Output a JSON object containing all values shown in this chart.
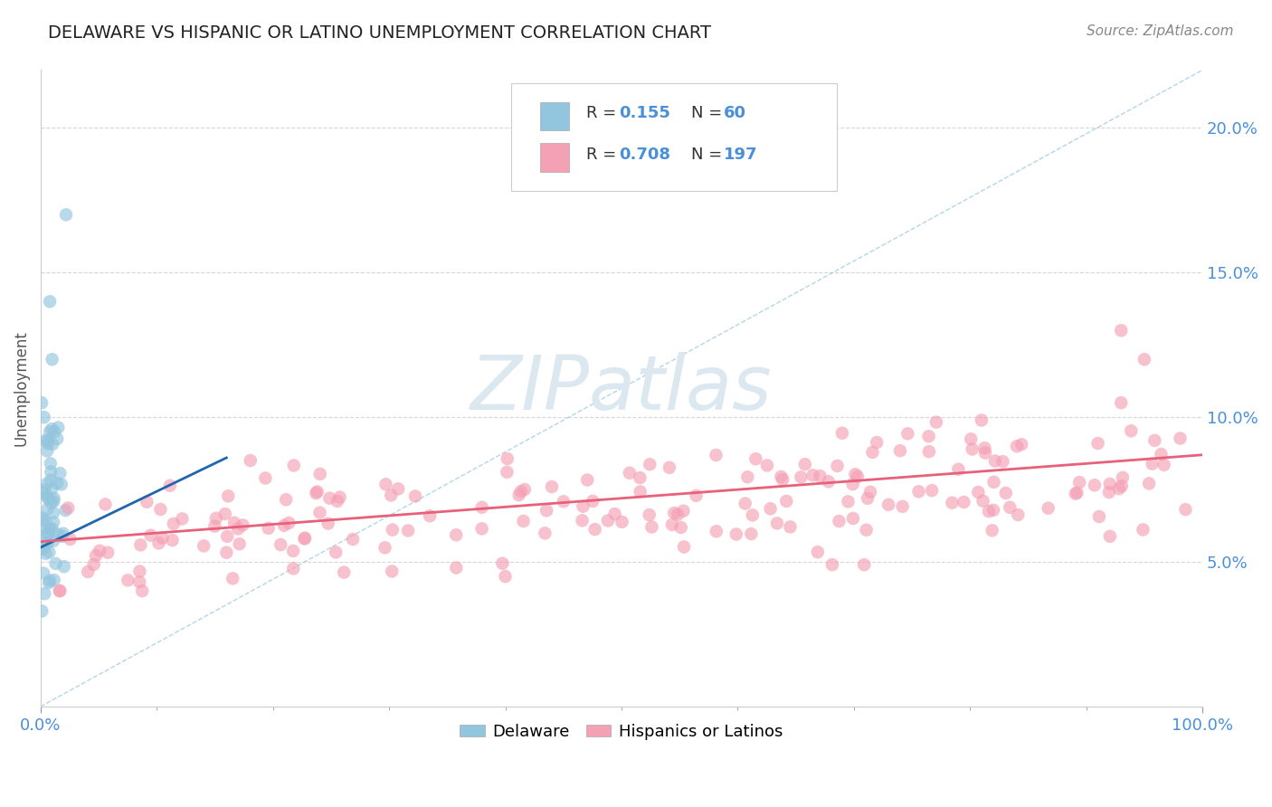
{
  "title": "DELAWARE VS HISPANIC OR LATINO UNEMPLOYMENT CORRELATION CHART",
  "source": "Source: ZipAtlas.com",
  "ylabel": "Unemployment",
  "y_tick_labels": [
    "5.0%",
    "10.0%",
    "15.0%",
    "20.0%"
  ],
  "y_tick_values": [
    0.05,
    0.1,
    0.15,
    0.2
  ],
  "x_range": [
    0.0,
    1.0
  ],
  "y_range": [
    0.0,
    0.22
  ],
  "legend_r1": "R = 0.155",
  "legend_n1": "N = 60",
  "legend_r2": "R = 0.708",
  "legend_n2": "N = 197",
  "legend_labels": [
    "Delaware",
    "Hispanics or Latinos"
  ],
  "color_blue": "#92c5de",
  "color_pink": "#f4a0b5",
  "color_blue_line": "#2166ac",
  "color_pink_line": "#e8607a",
  "color_diag": "#92c5de",
  "color_legend_text_r": "#333333",
  "color_legend_text_n": "#4a90d9",
  "background_color": "#ffffff",
  "grid_color": "#cccccc",
  "watermark_color": "#dce8f0",
  "title_fontsize": 14,
  "source_fontsize": 11,
  "tick_fontsize": 13
}
